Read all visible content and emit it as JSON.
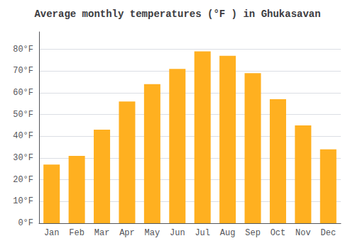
{
  "chart_data": {
    "type": "bar",
    "title": "Average monthly temperatures (°F ) in Ghukasavan",
    "categories": [
      "Jan",
      "Feb",
      "Mar",
      "Apr",
      "May",
      "Jun",
      "Jul",
      "Aug",
      "Sep",
      "Oct",
      "Nov",
      "Dec"
    ],
    "values": [
      27,
      31,
      43,
      56,
      64,
      71,
      79,
      77,
      69,
      57,
      45,
      34
    ],
    "color": "#FFB020",
    "ylim": [
      0,
      88
    ],
    "yticks": [
      {
        "value": 0,
        "label": "0°F"
      },
      {
        "value": 10,
        "label": "10°F"
      },
      {
        "value": 20,
        "label": "20°F"
      },
      {
        "value": 30,
        "label": "30°F"
      },
      {
        "value": 40,
        "label": "40°F"
      },
      {
        "value": 50,
        "label": "50°F"
      },
      {
        "value": 60,
        "label": "60°F"
      },
      {
        "value": 70,
        "label": "70°F"
      },
      {
        "value": 80,
        "label": "80°F"
      }
    ],
    "grid": true
  }
}
